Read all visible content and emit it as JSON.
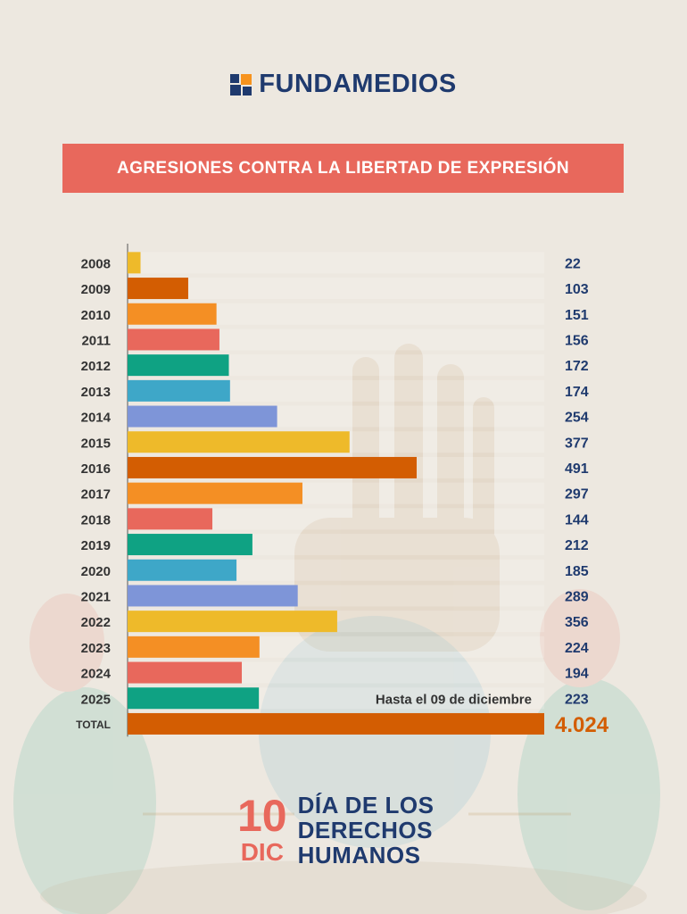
{
  "brand": {
    "name": "FUNDAMEDIOS",
    "colors": {
      "navy": "#1f3a6e",
      "orange": "#f7931e"
    }
  },
  "header": {
    "title": "AGRESIONES CONTRA LA LIBERTAD DE EXPRESIÓN"
  },
  "chart_data": {
    "type": "bar",
    "orientation": "horizontal",
    "title": "AGRESIONES CONTRA LA LIBERTAD DE EXPRESIÓN",
    "categories": [
      "2008",
      "2009",
      "2010",
      "2011",
      "2012",
      "2013",
      "2014",
      "2015",
      "2016",
      "2017",
      "2018",
      "2019",
      "2020",
      "2021",
      "2022",
      "2023",
      "2024",
      "2025"
    ],
    "values": [
      22,
      103,
      151,
      156,
      172,
      174,
      254,
      377,
      491,
      297,
      144,
      212,
      185,
      289,
      356,
      224,
      194,
      223
    ],
    "value_labels": [
      "22",
      "103",
      "151",
      "156",
      "172",
      "174",
      "254",
      "377",
      "491",
      "297",
      "144",
      "212",
      "185",
      "289",
      "356",
      "224",
      "194",
      "223"
    ],
    "colors": [
      "#eeba2a",
      "#d35d02",
      "#f48f24",
      "#e8685c",
      "#0fa283",
      "#3ea7c8",
      "#7e95d8",
      "#eeba2a",
      "#d35d02",
      "#f48f24",
      "#e8685c",
      "#0fa283",
      "#3ea7c8",
      "#7e95d8",
      "#eeba2a",
      "#f48f24",
      "#e8685c",
      "#0fa283"
    ],
    "annotation": "Hasta el 09 de diciembre",
    "total": {
      "label": "TOTAL",
      "value": 4024,
      "display": "4.024",
      "color": "#d35d02"
    },
    "xlim": [
      0,
      491
    ],
    "xlabel": "",
    "ylabel": "",
    "legend": "none"
  },
  "footer": {
    "day": "10",
    "month": "DIC",
    "event_lines": [
      "DÍA DE LOS",
      "DERECHOS",
      "HUMANOS"
    ]
  }
}
